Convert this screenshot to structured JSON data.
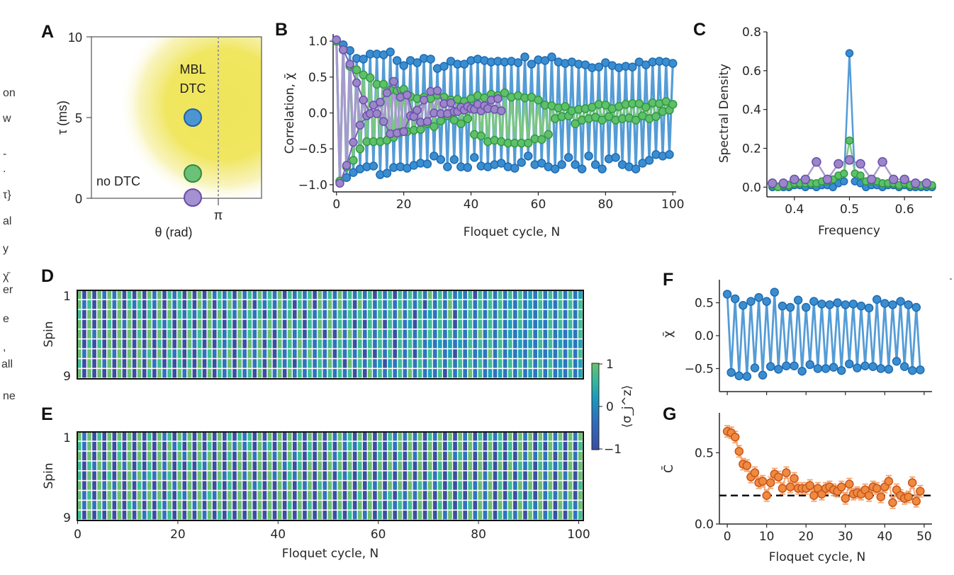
{
  "margin_fragments": [
    "on",
    "w",
    "-",
    ".",
    "τ}",
    "al",
    "y",
    "χ̄",
    "er",
    "e",
    ",",
    "all",
    "ne"
  ],
  "chart_data": [
    {
      "panel": "A",
      "type": "scatter",
      "xlabel": "θ (rad)",
      "ylabel": "τ (ms)",
      "ylim": [
        0,
        10
      ],
      "yticks": [
        "0",
        "5",
        "10"
      ],
      "xticks": [
        "π"
      ],
      "region_labels": {
        "mbl": "MBL\nDTC",
        "mbl_line1": "MBL",
        "mbl_line2": "DTC",
        "no": "no DTC"
      },
      "reference_line": "θ = π (dotted)",
      "points": [
        {
          "series": "blue",
          "tau": 5.0,
          "color": "#3a8ed0"
        },
        {
          "series": "green",
          "tau": 1.5,
          "color": "#5fbf6a"
        },
        {
          "series": "purple",
          "tau": 0.0,
          "color": "#9b86c9"
        }
      ]
    },
    {
      "panel": "B",
      "type": "line",
      "xlabel": "Floquet cycle, N",
      "ylabel": "Correlation, χ̄",
      "xlim": [
        0,
        100
      ],
      "ylim": [
        -1.1,
        1.1
      ],
      "xticks": [
        "0",
        "20",
        "40",
        "60",
        "80",
        "100"
      ],
      "yticks": [
        "−1.0",
        "−0.5",
        "0.0",
        "0.5",
        "1.0"
      ],
      "series": [
        {
          "name": "blue",
          "color": "#3a8ed0",
          "n_points": 101,
          "even_envelope": [
            1.0,
            0.95,
            0.87,
            0.76,
            0.75,
            0.82,
            0.82,
            0.81,
            0.85,
            0.73,
            0.66,
            0.73,
            0.7,
            0.76,
            0.75,
            0.62,
            0.65,
            0.72,
            0.68,
            0.68,
            0.73,
            0.75,
            0.73,
            0.71,
            0.72,
            0.71,
            0.72,
            0.7,
            0.78,
            0.68,
            0.74,
            0.73,
            0.78,
            0.71,
            0.69,
            0.71,
            0.68,
            0.67,
            0.63,
            0.64,
            0.7,
            0.66,
            0.63,
            0.65,
            0.64,
            0.71,
            0.67,
            0.71,
            0.72,
            0.71,
            0.69
          ],
          "odd_envelope": [
            -0.95,
            -0.9,
            -0.83,
            -0.78,
            -0.75,
            -0.74,
            -0.86,
            -0.84,
            -0.76,
            -0.75,
            -0.77,
            -0.73,
            -0.7,
            -0.71,
            -0.6,
            -0.65,
            -0.75,
            -0.65,
            -0.75,
            -0.76,
            -0.62,
            -0.74,
            -0.75,
            -0.72,
            -0.7,
            -0.75,
            -0.77,
            -0.69,
            -0.6,
            -0.72,
            -0.7,
            -0.75,
            -0.78,
            -0.72,
            -0.62,
            -0.72,
            -0.78,
            -0.6,
            -0.72,
            -0.78,
            -0.64,
            -0.62,
            -0.72,
            -0.75,
            -0.78,
            -0.7,
            -0.66,
            -0.58,
            -0.6,
            -0.58
          ]
        },
        {
          "name": "green",
          "color": "#5fbf6a",
          "n_points": 101,
          "even_envelope": [
            1.0,
            0.88,
            0.65,
            0.6,
            0.53,
            0.49,
            0.4,
            0.4,
            0.32,
            0.31,
            0.33,
            0.23,
            0.2,
            0.22,
            0.2,
            0.25,
            0.22,
            0.18,
            0.19,
            0.16,
            0.2,
            0.24,
            0.21,
            0.26,
            0.24,
            0.28,
            0.22,
            0.24,
            0.21,
            0.22,
            0.18,
            0.11,
            0.1,
            0.07,
            0.09,
            0.03,
            0.05,
            0.06,
            0.08,
            0.12,
            0.11,
            0.06,
            0.09,
            0.12,
            0.13,
            0.13,
            0.08,
            0.14,
            0.13,
            0.16,
            0.12
          ],
          "odd_envelope": [
            -0.95,
            -0.75,
            -0.66,
            -0.5,
            -0.4,
            -0.4,
            -0.4,
            -0.38,
            -0.34,
            -0.27,
            -0.26,
            -0.24,
            -0.23,
            -0.15,
            -0.19,
            -0.11,
            -0.04,
            -0.1,
            -0.15,
            -0.08,
            -0.3,
            -0.32,
            -0.4,
            -0.38,
            -0.4,
            -0.42,
            -0.42,
            -0.42,
            -0.42,
            -0.36,
            -0.37,
            -0.3,
            -0.08,
            -0.05,
            -0.04,
            -0.15,
            -0.1,
            -0.08,
            -0.06,
            -0.1,
            -0.05,
            -0.1,
            -0.08,
            -0.07,
            -0.1,
            -0.04,
            -0.08,
            -0.05,
            0.02,
            0.04,
            0.05
          ]
        },
        {
          "name": "purple",
          "color": "#9b86c9",
          "n_points": 50,
          "even_envelope": [
            1.02,
            0.88,
            0.68,
            0.42,
            0.18,
            -0.01,
            -0.01,
            -0.12,
            -0.29,
            -0.28,
            -0.26,
            -0.04,
            0.04,
            0.18,
            0.3,
            0.31,
            0.13,
            0.14,
            0.02,
            0.04,
            0.06,
            0.12,
            0.1,
            0.18,
            0.2
          ],
          "odd_envelope": [
            -0.98,
            -0.73,
            -0.41,
            -0.17,
            -0.04,
            0.11,
            0.15,
            0.28,
            0.44,
            0.22,
            0.25,
            -0.05,
            -0.13,
            -0.12,
            0.0,
            -0.01,
            -0.01,
            0.02,
            0.08,
            0.09,
            0.05,
            0.03,
            0.06,
            0.05,
            0.03
          ]
        }
      ]
    },
    {
      "panel": "C",
      "type": "line",
      "xlabel": "Frequency",
      "ylabel": "Spectral Density",
      "xlim": [
        0.35,
        0.65
      ],
      "ylim": [
        -0.05,
        0.8
      ],
      "xticks": [
        "0.4",
        "0.5",
        "0.6"
      ],
      "yticks": [
        "0.0",
        "0.2",
        "0.4",
        "0.6",
        "0.8"
      ],
      "series": [
        {
          "name": "blue",
          "color": "#3a8ed0",
          "x": [
            0.36,
            0.37,
            0.38,
            0.39,
            0.4,
            0.41,
            0.42,
            0.43,
            0.44,
            0.45,
            0.46,
            0.47,
            0.48,
            0.49,
            0.5,
            0.51,
            0.52,
            0.53,
            0.54,
            0.55,
            0.56,
            0.57,
            0.58,
            0.59,
            0.6,
            0.61,
            0.62,
            0.63,
            0.64,
            0.65
          ],
          "y": [
            0.0,
            0.0,
            0.0,
            0.0,
            0.01,
            0.01,
            0.0,
            0.01,
            0.0,
            0.01,
            0.01,
            0.0,
            0.02,
            0.03,
            0.69,
            0.03,
            0.02,
            0.0,
            0.01,
            0.01,
            0.0,
            0.01,
            0.01,
            0.0,
            0.01,
            0.0,
            0.0,
            0.0,
            0.0,
            0.0
          ]
        },
        {
          "name": "green",
          "color": "#5fbf6a",
          "x": [
            0.36,
            0.37,
            0.38,
            0.39,
            0.4,
            0.41,
            0.42,
            0.43,
            0.44,
            0.45,
            0.46,
            0.47,
            0.48,
            0.49,
            0.5,
            0.51,
            0.52,
            0.53,
            0.54,
            0.55,
            0.56,
            0.57,
            0.58,
            0.59,
            0.6,
            0.61,
            0.62,
            0.63,
            0.64,
            0.65
          ],
          "y": [
            0.01,
            0.0,
            0.01,
            0.01,
            0.02,
            0.02,
            0.02,
            0.02,
            0.02,
            0.03,
            0.03,
            0.04,
            0.06,
            0.07,
            0.24,
            0.07,
            0.06,
            0.03,
            0.03,
            0.03,
            0.02,
            0.02,
            0.02,
            0.01,
            0.02,
            0.01,
            0.01,
            0.01,
            0.01,
            0.01
          ]
        },
        {
          "name": "purple",
          "color": "#9b86c9",
          "x": [
            0.36,
            0.38,
            0.4,
            0.42,
            0.44,
            0.46,
            0.48,
            0.5,
            0.52,
            0.54,
            0.56,
            0.58,
            0.6,
            0.62,
            0.64
          ],
          "y": [
            0.02,
            0.02,
            0.04,
            0.04,
            0.13,
            0.04,
            0.12,
            0.14,
            0.12,
            0.04,
            0.13,
            0.04,
            0.04,
            0.02,
            0.02
          ]
        }
      ]
    },
    {
      "panel": "D",
      "type": "heatmap",
      "ylabel": "Spin",
      "yticks": [
        "1",
        "9"
      ],
      "rows": 9,
      "columns": 101,
      "description": "site-resolved ⟨σz⟩ alternating sign each cycle, contrast decays over N"
    },
    {
      "panel": "E",
      "type": "heatmap",
      "xlabel": "Floquet cycle, N",
      "ylabel": "Spin",
      "xticks": [
        "0",
        "20",
        "40",
        "60",
        "80",
        "100"
      ],
      "yticks": [
        "1",
        "9"
      ],
      "rows": 9,
      "columns": 101,
      "description": "site-resolved ⟨σz⟩ alternating sign each cycle, contrast persists"
    },
    {
      "panel": "colorbar",
      "type": "heatmap",
      "label": "⟨σ_j^z⟩",
      "range": [
        -1,
        1
      ],
      "ticks": [
        "−1",
        "0",
        "1"
      ],
      "colormap": [
        "#3a4ea3",
        "#2f73c0",
        "#1aa3b8",
        "#3fbf93",
        "#6cc070"
      ]
    },
    {
      "panel": "F",
      "type": "line",
      "ylabel": "χ̄",
      "xlim": [
        0,
        50
      ],
      "ylim": [
        -0.85,
        0.85
      ],
      "yticks": [
        "−0.5",
        "0.0",
        "0.5"
      ],
      "series": [
        {
          "name": "blue",
          "color": "#3a8ed0",
          "y": [
            0.63,
            -0.56,
            0.56,
            -0.61,
            0.46,
            -0.62,
            0.52,
            -0.49,
            0.58,
            -0.6,
            0.52,
            -0.47,
            0.66,
            -0.51,
            0.45,
            -0.46,
            0.43,
            -0.46,
            0.54,
            -0.54,
            0.43,
            -0.44,
            0.52,
            -0.5,
            0.48,
            -0.5,
            0.47,
            -0.48,
            0.5,
            -0.53,
            0.47,
            -0.43,
            0.48,
            -0.49,
            0.45,
            -0.46,
            0.42,
            -0.47,
            0.55,
            -0.5,
            0.49,
            -0.51,
            0.47,
            -0.39,
            0.52,
            -0.47,
            0.47,
            -0.53,
            0.43,
            -0.52
          ]
        }
      ]
    },
    {
      "panel": "G",
      "type": "scatter",
      "xlabel": "Floquet cycle, N",
      "ylabel": "C̄",
      "xlim": [
        -2,
        52
      ],
      "ylim": [
        0,
        0.78
      ],
      "xticks": [
        "0",
        "10",
        "20",
        "30",
        "40",
        "50"
      ],
      "yticks": [
        "0.0",
        "0.5"
      ],
      "reference_line": 0.2,
      "series": [
        {
          "name": "orange",
          "color": "#f08a3e",
          "y": [
            0.65,
            0.64,
            0.61,
            0.51,
            0.42,
            0.41,
            0.33,
            0.36,
            0.29,
            0.3,
            0.2,
            0.29,
            0.35,
            0.33,
            0.25,
            0.36,
            0.26,
            0.32,
            0.25,
            0.25,
            0.25,
            0.27,
            0.2,
            0.25,
            0.21,
            0.25,
            0.26,
            0.24,
            0.23,
            0.26,
            0.18,
            0.28,
            0.21,
            0.22,
            0.21,
            0.24,
            0.2,
            0.26,
            0.25,
            0.19,
            0.26,
            0.3,
            0.15,
            0.24,
            0.2,
            0.18,
            0.19,
            0.29,
            0.16,
            0.23
          ],
          "error": 0.04
        }
      ]
    }
  ]
}
